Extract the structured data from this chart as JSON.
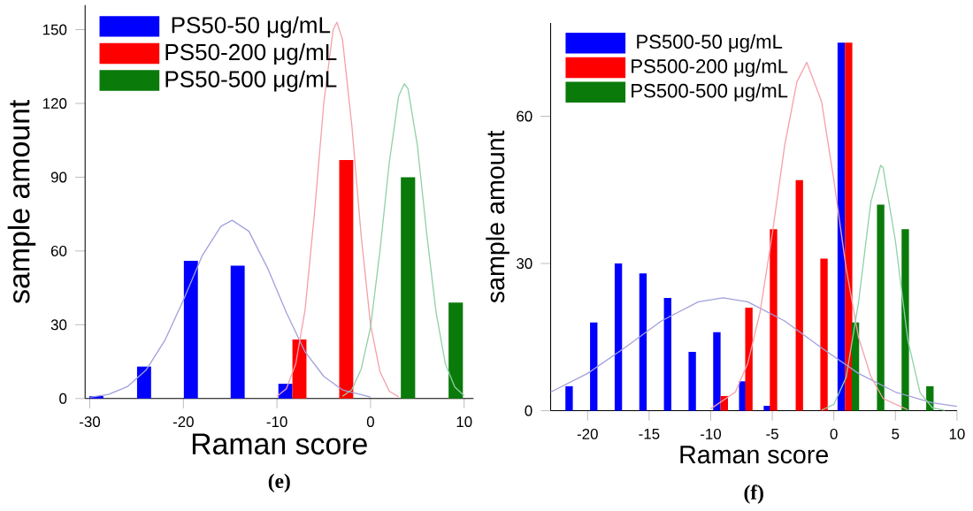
{
  "chart_data": [
    {
      "type": "bar",
      "xlabel": "Raman score",
      "ylabel": "sample amount",
      "xlim": [
        -30.5,
        11
      ],
      "ylim": [
        0,
        160
      ],
      "xticks": [
        -30,
        -20,
        -10,
        0,
        10
      ],
      "yticks": [
        0,
        30,
        60,
        90,
        120,
        150
      ],
      "legend": "top left",
      "annotations": [
        "(e)"
      ],
      "series": [
        {
          "name": "PS50-50 μg/mL",
          "color": "#0000ff",
          "x": [
            -29.3,
            -24.2,
            -19.2,
            -14.2,
            -9.1
          ],
          "values": [
            1,
            13,
            56,
            54,
            6
          ]
        },
        {
          "name": "PS50-200 μg/mL",
          "color": "#ff0000",
          "x": [
            -7.6,
            -2.6
          ],
          "values": [
            24,
            97
          ]
        },
        {
          "name": "PS50-500 μg/mL",
          "color": "#0a7a0a",
          "x": [
            4.0,
            9.1
          ],
          "values": [
            90,
            39
          ]
        },
        {
          "type": "line",
          "color": "#a0a0dc",
          "x": [
            -30,
            -28,
            -26,
            -24,
            -22,
            -20,
            -18,
            -16,
            -14.8,
            -13,
            -11,
            -9,
            -7,
            -5,
            -3,
            0
          ],
          "values": [
            0.5,
            1.7,
            4.8,
            11.5,
            23.5,
            40,
            58,
            70,
            72.5,
            68,
            53,
            35,
            19,
            9,
            3.5,
            0.6
          ]
        },
        {
          "type": "line",
          "color": "#f4a0aa",
          "x": [
            -10,
            -9,
            -8,
            -7,
            -6,
            -5,
            -4,
            -3.6,
            -3,
            -2,
            -1,
            0,
            1,
            2,
            3
          ],
          "values": [
            0.9,
            4,
            14,
            36,
            75,
            120,
            150,
            153,
            146,
            111,
            66,
            30,
            11,
            3,
            0.7
          ]
        },
        {
          "type": "line",
          "color": "#90d0a8",
          "x": [
            -3,
            -2,
            -1,
            0,
            1,
            2,
            3,
            3.6,
            4,
            5,
            6,
            7,
            8,
            9,
            10
          ],
          "values": [
            0.9,
            3.6,
            12,
            29,
            60,
            96,
            123,
            128,
            126,
            103,
            67,
            35,
            14,
            4.7,
            1.2
          ]
        }
      ]
    },
    {
      "type": "bar",
      "xlabel": "Raman score",
      "ylabel": "sample amount",
      "xlim": [
        -23,
        10
      ],
      "ylim": [
        0,
        79
      ],
      "xticks": [
        -20,
        -15,
        -10,
        -5,
        0,
        5,
        10
      ],
      "yticks": [
        0,
        30,
        60
      ],
      "legend": "top left",
      "annotations": [
        "(f)"
      ],
      "series": [
        {
          "name": "PS500-50 μg/mL",
          "color": "#0000ff",
          "x": [
            -21.5,
            -19.5,
            -17.5,
            -15.5,
            -13.5,
            -11.5,
            -9.5,
            -7.4,
            -5.4,
            0.6
          ],
          "values": [
            5,
            18,
            30,
            28,
            23,
            12,
            16,
            6,
            1,
            75
          ]
        },
        {
          "name": "PS500-200 μg/mL",
          "color": "#ff0000",
          "x": [
            -8.9,
            -6.9,
            -4.9,
            -2.8,
            -0.8,
            1.2
          ],
          "values": [
            3,
            21,
            37,
            47,
            31,
            75
          ]
        },
        {
          "name": "PS500-500 μg/mL",
          "color": "#0a7a0a",
          "x": [
            1.75,
            3.8,
            5.8,
            7.8
          ],
          "values": [
            18,
            42,
            37,
            5
          ]
        },
        {
          "type": "line",
          "color": "#a0a0dc",
          "x": [
            -23,
            -20,
            -17,
            -14,
            -11,
            -9,
            -7,
            -4,
            -1,
            2,
            5,
            8,
            10
          ],
          "values": [
            3.8,
            7.6,
            12.8,
            18.3,
            22.2,
            23,
            22.2,
            18.3,
            12.8,
            7.6,
            3.8,
            1.6,
            0.9
          ]
        },
        {
          "type": "line",
          "color": "#f4a0aa",
          "x": [
            -10,
            -8,
            -7,
            -6,
            -5,
            -4,
            -3,
            -2.2,
            -1,
            0,
            1,
            2,
            3,
            4,
            6
          ],
          "values": [
            0.4,
            3.8,
            9.6,
            20,
            36,
            54,
            67,
            71,
            63,
            47,
            29,
            15,
            7,
            2.5,
            0.2
          ]
        },
        {
          "type": "line",
          "color": "#90d0a8",
          "x": [
            -1,
            0,
            1,
            2,
            3,
            3.8,
            4,
            5,
            6,
            7,
            8,
            9
          ],
          "values": [
            0.1,
            1.3,
            6.8,
            22,
            42.5,
            50,
            49.5,
            34.6,
            14.5,
            3.7,
            0.6,
            0.1
          ]
        }
      ]
    }
  ]
}
